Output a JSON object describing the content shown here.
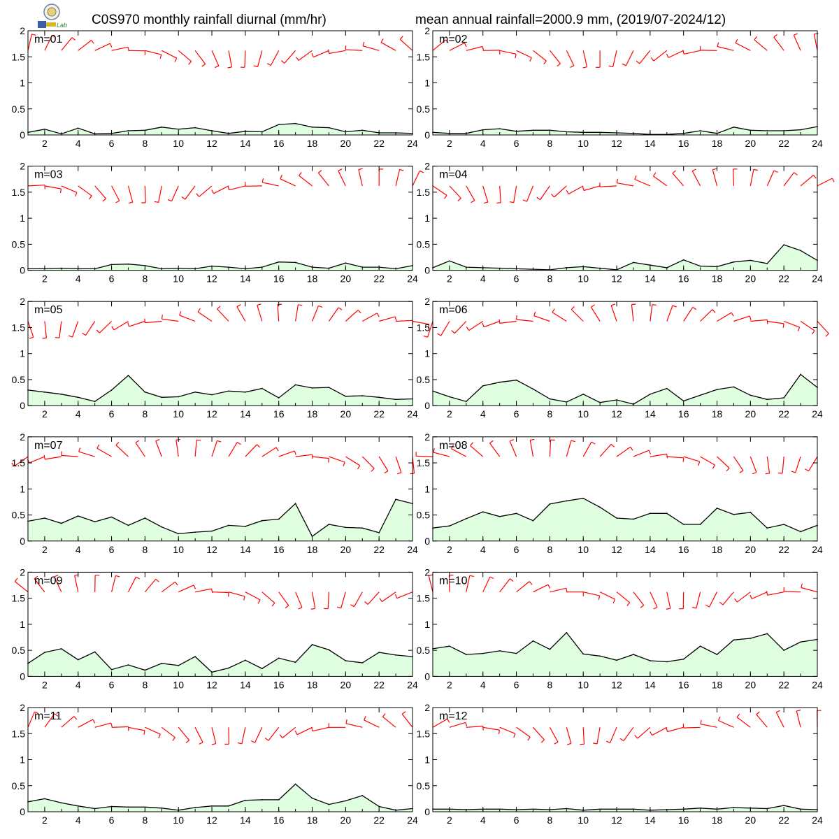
{
  "header": {
    "title_left": "C0S970 monthly rainfall diurnal (mm/hr)",
    "title_right": "mean annual rainfall=2000.9 mm, (2019/07-2024/12)",
    "logo_text": "Lab"
  },
  "colors": {
    "rain_fill": "#e0ffe0",
    "rain_line": "#000000",
    "wind_barb": "#ff0000",
    "axis": "#000000"
  },
  "chart_data": {
    "type": "area",
    "layout": "6 rows x 2 columns of small multiples",
    "x_ticks": [
      "2",
      "4",
      "6",
      "8",
      "10",
      "12",
      "14",
      "16",
      "18",
      "20",
      "22",
      "24"
    ],
    "y_ticks": [
      "0",
      "0.5",
      "1",
      "1.5",
      "2"
    ],
    "xlim": [
      1,
      24
    ],
    "ylim": [
      0,
      2
    ],
    "wind_barbs_shown": true,
    "panels": [
      {
        "label": "m=01",
        "x": [
          1,
          2,
          3,
          4,
          5,
          6,
          7,
          8,
          9,
          10,
          11,
          12,
          13,
          14,
          15,
          16,
          17,
          18,
          19,
          20,
          21,
          22,
          23,
          24
        ],
        "values": [
          0.05,
          0.11,
          0.02,
          0.13,
          0.02,
          0.03,
          0.08,
          0.09,
          0.15,
          0.11,
          0.14,
          0.08,
          0.03,
          0.07,
          0.06,
          0.2,
          0.22,
          0.15,
          0.14,
          0.06,
          0.09,
          0.04,
          0.04,
          0.03
        ]
      },
      {
        "label": "m=02",
        "x": [
          1,
          2,
          3,
          4,
          5,
          6,
          7,
          8,
          9,
          10,
          11,
          12,
          13,
          14,
          15,
          16,
          17,
          18,
          19,
          20,
          21,
          22,
          23,
          24
        ],
        "values": [
          0.05,
          0.03,
          0.03,
          0.1,
          0.12,
          0.07,
          0.09,
          0.09,
          0.06,
          0.05,
          0.05,
          0.04,
          0.03,
          0.01,
          0.01,
          0.03,
          0.08,
          0.03,
          0.15,
          0.09,
          0.08,
          0.08,
          0.1,
          0.16
        ]
      },
      {
        "label": "m=03",
        "x": [
          1,
          2,
          3,
          4,
          5,
          6,
          7,
          8,
          9,
          10,
          11,
          12,
          13,
          14,
          15,
          16,
          17,
          18,
          19,
          20,
          21,
          22,
          23,
          24
        ],
        "values": [
          0.03,
          0.03,
          0.04,
          0.03,
          0.03,
          0.11,
          0.12,
          0.09,
          0.03,
          0.04,
          0.03,
          0.08,
          0.06,
          0.03,
          0.06,
          0.16,
          0.15,
          0.06,
          0.04,
          0.14,
          0.06,
          0.06,
          0.03,
          0.09
        ]
      },
      {
        "label": "m=04",
        "x": [
          1,
          2,
          3,
          4,
          5,
          6,
          7,
          8,
          9,
          10,
          11,
          12,
          13,
          14,
          15,
          16,
          17,
          18,
          19,
          20,
          21,
          22,
          23,
          24
        ],
        "values": [
          0.05,
          0.18,
          0.06,
          0.05,
          0.04,
          0.03,
          0.02,
          0.01,
          0.05,
          0.07,
          0.04,
          0.01,
          0.15,
          0.1,
          0.05,
          0.2,
          0.08,
          0.07,
          0.16,
          0.19,
          0.13,
          0.49,
          0.38,
          0.19
        ]
      },
      {
        "label": "m=05",
        "x": [
          1,
          2,
          3,
          4,
          5,
          6,
          7,
          8,
          9,
          10,
          11,
          12,
          13,
          14,
          15,
          16,
          17,
          18,
          19,
          20,
          21,
          22,
          23,
          24
        ],
        "values": [
          0.3,
          0.26,
          0.22,
          0.16,
          0.08,
          0.3,
          0.58,
          0.26,
          0.16,
          0.17,
          0.26,
          0.21,
          0.28,
          0.26,
          0.33,
          0.15,
          0.4,
          0.34,
          0.35,
          0.18,
          0.19,
          0.16,
          0.12,
          0.13
        ]
      },
      {
        "label": "m=06",
        "x": [
          1,
          2,
          3,
          4,
          5,
          6,
          7,
          8,
          9,
          10,
          11,
          12,
          13,
          14,
          15,
          16,
          17,
          18,
          19,
          20,
          21,
          22,
          23,
          24
        ],
        "values": [
          0.28,
          0.17,
          0.08,
          0.38,
          0.45,
          0.49,
          0.32,
          0.13,
          0.07,
          0.22,
          0.06,
          0.11,
          0.03,
          0.22,
          0.33,
          0.09,
          0.2,
          0.31,
          0.36,
          0.2,
          0.12,
          0.15,
          0.6,
          0.35
        ]
      },
      {
        "label": "m=07",
        "x": [
          1,
          2,
          3,
          4,
          5,
          6,
          7,
          8,
          9,
          10,
          11,
          12,
          13,
          14,
          15,
          16,
          17,
          18,
          19,
          20,
          21,
          22,
          23,
          24
        ],
        "values": [
          0.38,
          0.44,
          0.34,
          0.48,
          0.37,
          0.46,
          0.3,
          0.44,
          0.27,
          0.14,
          0.17,
          0.19,
          0.3,
          0.28,
          0.39,
          0.42,
          0.72,
          0.09,
          0.32,
          0.26,
          0.25,
          0.16,
          0.8,
          0.72
        ]
      },
      {
        "label": "m=08",
        "x": [
          1,
          2,
          3,
          4,
          5,
          6,
          7,
          8,
          9,
          10,
          11,
          12,
          13,
          14,
          15,
          16,
          17,
          18,
          19,
          20,
          21,
          22,
          23,
          24
        ],
        "values": [
          0.25,
          0.29,
          0.43,
          0.56,
          0.47,
          0.53,
          0.39,
          0.71,
          0.77,
          0.82,
          0.65,
          0.44,
          0.42,
          0.53,
          0.53,
          0.32,
          0.32,
          0.63,
          0.51,
          0.55,
          0.25,
          0.32,
          0.18,
          0.3
        ]
      },
      {
        "label": "m=09",
        "x": [
          1,
          2,
          3,
          4,
          5,
          6,
          7,
          8,
          9,
          10,
          11,
          12,
          13,
          14,
          15,
          16,
          17,
          18,
          19,
          20,
          21,
          22,
          23,
          24
        ],
        "values": [
          0.25,
          0.46,
          0.53,
          0.32,
          0.47,
          0.13,
          0.22,
          0.12,
          0.25,
          0.21,
          0.38,
          0.08,
          0.16,
          0.31,
          0.15,
          0.35,
          0.27,
          0.61,
          0.51,
          0.3,
          0.26,
          0.46,
          0.41,
          0.38
        ]
      },
      {
        "label": "m=10",
        "x": [
          1,
          2,
          3,
          4,
          5,
          6,
          7,
          8,
          9,
          10,
          11,
          12,
          13,
          14,
          15,
          16,
          17,
          18,
          19,
          20,
          21,
          22,
          23,
          24
        ],
        "values": [
          0.53,
          0.58,
          0.42,
          0.44,
          0.49,
          0.44,
          0.68,
          0.52,
          0.84,
          0.43,
          0.39,
          0.31,
          0.42,
          0.3,
          0.28,
          0.33,
          0.58,
          0.42,
          0.7,
          0.73,
          0.82,
          0.5,
          0.66,
          0.71
        ]
      },
      {
        "label": "m=11",
        "x": [
          1,
          2,
          3,
          4,
          5,
          6,
          7,
          8,
          9,
          10,
          11,
          12,
          13,
          14,
          15,
          16,
          17,
          18,
          19,
          20,
          21,
          22,
          23,
          24
        ],
        "values": [
          0.19,
          0.25,
          0.17,
          0.11,
          0.06,
          0.1,
          0.09,
          0.09,
          0.07,
          0.03,
          0.08,
          0.11,
          0.11,
          0.22,
          0.23,
          0.23,
          0.53,
          0.26,
          0.14,
          0.21,
          0.31,
          0.1,
          0.03,
          0.06
        ]
      },
      {
        "label": "m=12",
        "x": [
          1,
          2,
          3,
          4,
          5,
          6,
          7,
          8,
          9,
          10,
          11,
          12,
          13,
          14,
          15,
          16,
          17,
          18,
          19,
          20,
          21,
          22,
          23,
          24
        ],
        "values": [
          0.05,
          0.05,
          0.04,
          0.05,
          0.05,
          0.04,
          0.05,
          0.04,
          0.06,
          0.03,
          0.05,
          0.05,
          0.05,
          0.03,
          0.04,
          0.05,
          0.07,
          0.05,
          0.08,
          0.07,
          0.06,
          0.12,
          0.05,
          0.04
        ]
      }
    ]
  }
}
